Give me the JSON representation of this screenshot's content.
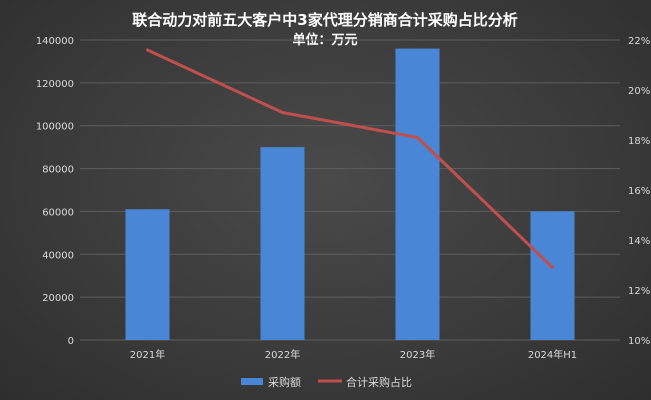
{
  "chart_data": {
    "type": "bar+line",
    "title": "联合动力对前五大客户中3家代理分销商合计采购占比分析",
    "subtitle": "单位：万元",
    "categories": [
      "2021年",
      "2022年",
      "2023年",
      "2024年H1"
    ],
    "series": [
      {
        "name": "采购额",
        "type": "bar",
        "axis": "left",
        "values": [
          61000,
          90000,
          136000,
          60000
        ],
        "color": "#4a86d6"
      },
      {
        "name": "合计采购占比",
        "type": "line",
        "axis": "right",
        "values": [
          21.6,
          19.1,
          18.1,
          12.9
        ],
        "color": "#c0504d"
      }
    ],
    "y_left": {
      "min": 0,
      "max": 140000,
      "step": 20000
    },
    "y_right": {
      "min": 10,
      "max": 22,
      "step": 2,
      "suffix": "%"
    },
    "grid": true,
    "legend_position": "bottom"
  }
}
